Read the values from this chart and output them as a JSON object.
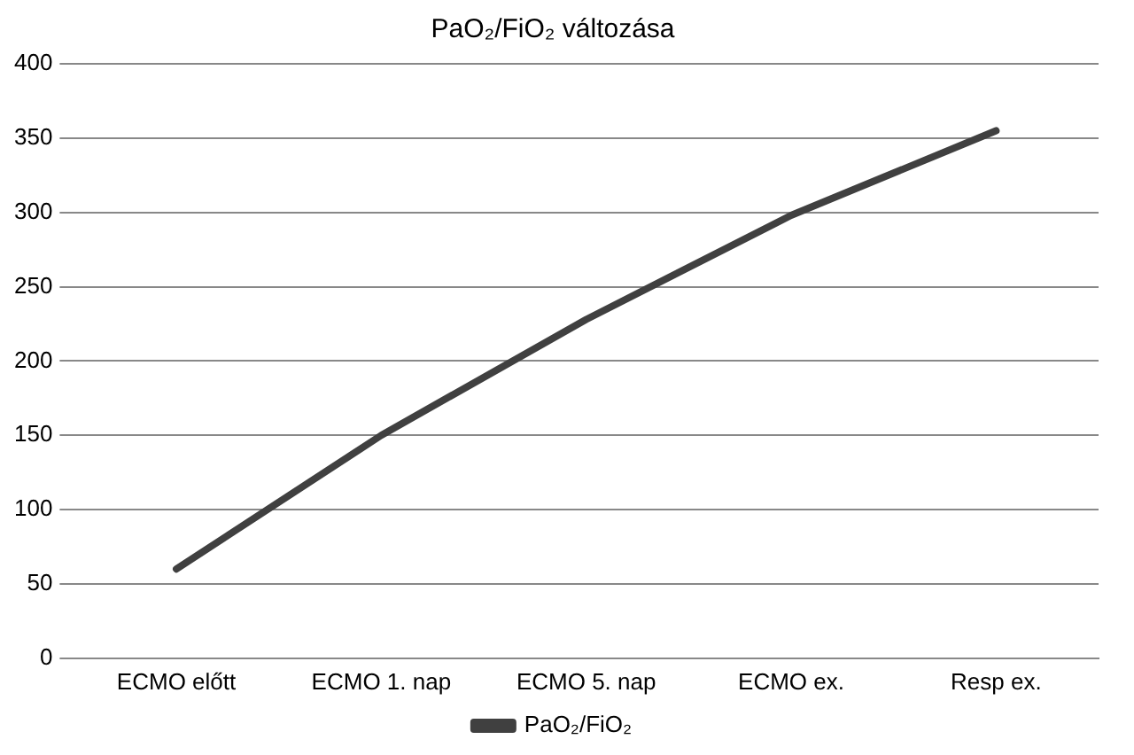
{
  "chart_data": {
    "type": "line",
    "title": "PaO₂/FiO₂ változása",
    "categories": [
      "ECMO előtt",
      "ECMO 1. nap",
      "ECMO 5. nap",
      "ECMO ex.",
      "Resp ex."
    ],
    "series": [
      {
        "name": "PaO₂/FiO₂",
        "color": "#404040",
        "values": [
          60,
          150,
          228,
          298,
          355
        ]
      }
    ],
    "ylim": [
      0,
      400
    ],
    "yticks": [
      0,
      50,
      100,
      150,
      200,
      250,
      300,
      350,
      400
    ],
    "grid": "y",
    "legend": "bottom",
    "marker": "none",
    "line_style": "solid"
  }
}
